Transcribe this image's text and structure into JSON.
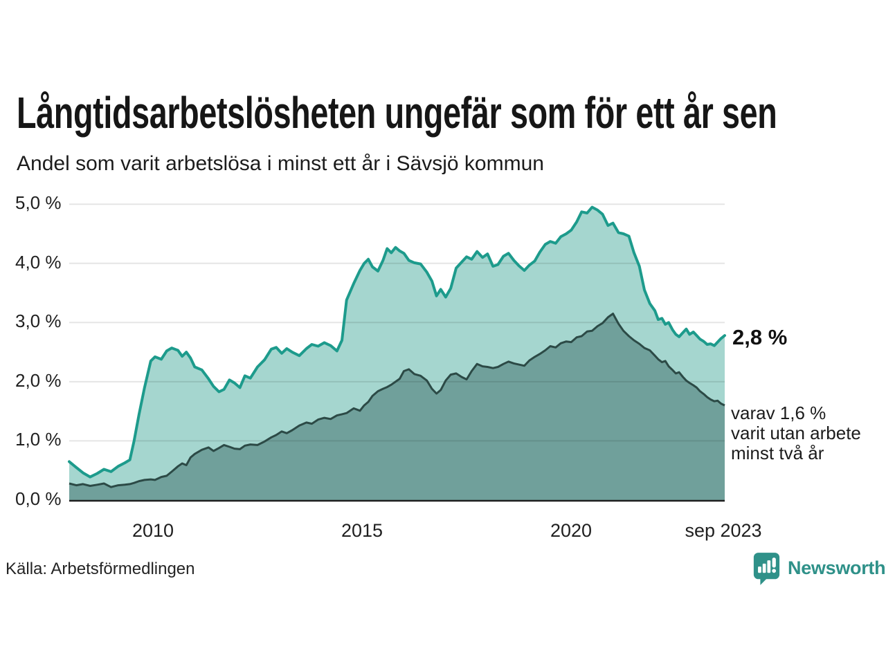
{
  "chart_data": {
    "type": "area",
    "title": "Långtidsarbetslösheten ungefär som för ett år sen",
    "subtitle": "Andel som varit arbetslösa i minst ett år i Sävsjö kommun",
    "xlabel": "",
    "ylabel": "",
    "x_range": [
      2008.0,
      2023.67
    ],
    "y_range": [
      0,
      5.3
    ],
    "grid": "horizontal",
    "series": [
      {
        "name": "arbetslösa minst ett år",
        "column": 1,
        "latest_value_pct": 2.8
      },
      {
        "name": "utan arbete minst två år",
        "column": 2,
        "latest_value_pct": 1.6
      }
    ],
    "y_ticks": [
      {
        "value": 0,
        "label": "0,0 %"
      },
      {
        "value": 1,
        "label": "1,0 %"
      },
      {
        "value": 2,
        "label": "2,0 %"
      },
      {
        "value": 3,
        "label": "3,0 %"
      },
      {
        "value": 4,
        "label": "4,0 %"
      },
      {
        "value": 5,
        "label": "5,0 %"
      }
    ],
    "x_ticks": [
      {
        "value": 2010,
        "label": "2010"
      },
      {
        "value": 2015,
        "label": "2015"
      },
      {
        "value": 2020,
        "label": "2020"
      },
      {
        "value": 2023.63,
        "label": "sep 2023"
      }
    ],
    "points": [
      [
        2008.0,
        0.65,
        0.28
      ],
      [
        2008.17,
        0.55,
        0.25
      ],
      [
        2008.33,
        0.46,
        0.27
      ],
      [
        2008.5,
        0.39,
        0.24
      ],
      [
        2008.67,
        0.45,
        0.26
      ],
      [
        2008.83,
        0.52,
        0.28
      ],
      [
        2009.0,
        0.48,
        0.22
      ],
      [
        2009.17,
        0.57,
        0.25
      ],
      [
        2009.33,
        0.63,
        0.26
      ],
      [
        2009.45,
        0.68,
        0.27
      ],
      [
        2009.55,
        1.0,
        0.29
      ],
      [
        2009.67,
        1.45,
        0.32
      ],
      [
        2009.8,
        1.9,
        0.34
      ],
      [
        2009.95,
        2.35,
        0.35
      ],
      [
        2010.05,
        2.42,
        0.34
      ],
      [
        2010.2,
        2.38,
        0.39
      ],
      [
        2010.33,
        2.52,
        0.41
      ],
      [
        2010.45,
        2.57,
        0.48
      ],
      [
        2010.6,
        2.53,
        0.57
      ],
      [
        2010.7,
        2.43,
        0.62
      ],
      [
        2010.8,
        2.5,
        0.59
      ],
      [
        2010.9,
        2.4,
        0.72
      ],
      [
        2011.0,
        2.25,
        0.78
      ],
      [
        2011.17,
        2.2,
        0.85
      ],
      [
        2011.33,
        2.05,
        0.89
      ],
      [
        2011.45,
        1.92,
        0.83
      ],
      [
        2011.58,
        1.83,
        0.88
      ],
      [
        2011.7,
        1.87,
        0.93
      ],
      [
        2011.83,
        2.03,
        0.9
      ],
      [
        2011.95,
        1.98,
        0.87
      ],
      [
        2012.08,
        1.9,
        0.86
      ],
      [
        2012.2,
        2.1,
        0.92
      ],
      [
        2012.33,
        2.06,
        0.94
      ],
      [
        2012.5,
        2.25,
        0.93
      ],
      [
        2012.67,
        2.37,
        0.99
      ],
      [
        2012.83,
        2.55,
        1.06
      ],
      [
        2012.95,
        2.58,
        1.1
      ],
      [
        2013.08,
        2.48,
        1.16
      ],
      [
        2013.2,
        2.56,
        1.13
      ],
      [
        2013.33,
        2.5,
        1.18
      ],
      [
        2013.5,
        2.44,
        1.26
      ],
      [
        2013.67,
        2.56,
        1.31
      ],
      [
        2013.8,
        2.63,
        1.29
      ],
      [
        2013.95,
        2.6,
        1.36
      ],
      [
        2014.1,
        2.66,
        1.39
      ],
      [
        2014.25,
        2.61,
        1.37
      ],
      [
        2014.4,
        2.52,
        1.43
      ],
      [
        2014.52,
        2.7,
        1.45
      ],
      [
        2014.63,
        3.38,
        1.47
      ],
      [
        2014.8,
        3.66,
        1.55
      ],
      [
        2014.95,
        3.88,
        1.51
      ],
      [
        2015.05,
        4.0,
        1.6
      ],
      [
        2015.15,
        4.07,
        1.66
      ],
      [
        2015.25,
        3.94,
        1.76
      ],
      [
        2015.38,
        3.87,
        1.84
      ],
      [
        2015.5,
        4.05,
        1.88
      ],
      [
        2015.6,
        4.25,
        1.91
      ],
      [
        2015.7,
        4.18,
        1.95
      ],
      [
        2015.8,
        4.27,
        2.0
      ],
      [
        2015.9,
        4.21,
        2.05
      ],
      [
        2016.0,
        4.17,
        2.18
      ],
      [
        2016.12,
        4.05,
        2.21
      ],
      [
        2016.25,
        4.01,
        2.13
      ],
      [
        2016.4,
        3.99,
        2.1
      ],
      [
        2016.55,
        3.85,
        2.02
      ],
      [
        2016.67,
        3.7,
        1.88
      ],
      [
        2016.78,
        3.45,
        1.8
      ],
      [
        2016.88,
        3.56,
        1.86
      ],
      [
        2017.0,
        3.43,
        2.02
      ],
      [
        2017.12,
        3.58,
        2.12
      ],
      [
        2017.25,
        3.92,
        2.14
      ],
      [
        2017.38,
        4.02,
        2.08
      ],
      [
        2017.5,
        4.11,
        2.04
      ],
      [
        2017.62,
        4.07,
        2.18
      ],
      [
        2017.75,
        4.2,
        2.3
      ],
      [
        2017.88,
        4.1,
        2.26
      ],
      [
        2018.0,
        4.16,
        2.25
      ],
      [
        2018.13,
        3.95,
        2.23
      ],
      [
        2018.25,
        3.98,
        2.25
      ],
      [
        2018.38,
        4.12,
        2.3
      ],
      [
        2018.5,
        4.17,
        2.34
      ],
      [
        2018.63,
        4.05,
        2.31
      ],
      [
        2018.75,
        3.96,
        2.29
      ],
      [
        2018.88,
        3.88,
        2.27
      ],
      [
        2019.0,
        3.97,
        2.36
      ],
      [
        2019.13,
        4.04,
        2.42
      ],
      [
        2019.25,
        4.19,
        2.47
      ],
      [
        2019.38,
        4.32,
        2.53
      ],
      [
        2019.5,
        4.37,
        2.6
      ],
      [
        2019.63,
        4.34,
        2.58
      ],
      [
        2019.75,
        4.45,
        2.65
      ],
      [
        2019.88,
        4.5,
        2.68
      ],
      [
        2020.0,
        4.56,
        2.67
      ],
      [
        2020.13,
        4.7,
        2.75
      ],
      [
        2020.25,
        4.87,
        2.77
      ],
      [
        2020.38,
        4.85,
        2.85
      ],
      [
        2020.5,
        4.95,
        2.86
      ],
      [
        2020.63,
        4.9,
        2.94
      ],
      [
        2020.75,
        4.83,
        2.99
      ],
      [
        2020.88,
        4.64,
        3.09
      ],
      [
        2021.0,
        4.68,
        3.15
      ],
      [
        2021.13,
        4.52,
        2.98
      ],
      [
        2021.25,
        4.5,
        2.86
      ],
      [
        2021.38,
        4.46,
        2.77
      ],
      [
        2021.5,
        4.18,
        2.7
      ],
      [
        2021.63,
        3.95,
        2.64
      ],
      [
        2021.75,
        3.55,
        2.57
      ],
      [
        2021.88,
        3.32,
        2.53
      ],
      [
        2022.0,
        3.2,
        2.44
      ],
      [
        2022.08,
        3.05,
        2.38
      ],
      [
        2022.17,
        3.07,
        2.33
      ],
      [
        2022.25,
        2.97,
        2.35
      ],
      [
        2022.33,
        3.0,
        2.26
      ],
      [
        2022.42,
        2.88,
        2.2
      ],
      [
        2022.5,
        2.8,
        2.14
      ],
      [
        2022.58,
        2.76,
        2.16
      ],
      [
        2022.67,
        2.83,
        2.08
      ],
      [
        2022.75,
        2.89,
        2.02
      ],
      [
        2022.83,
        2.8,
        1.98
      ],
      [
        2022.92,
        2.84,
        1.94
      ],
      [
        2023.0,
        2.78,
        1.9
      ],
      [
        2023.08,
        2.72,
        1.84
      ],
      [
        2023.17,
        2.68,
        1.79
      ],
      [
        2023.25,
        2.63,
        1.74
      ],
      [
        2023.33,
        2.64,
        1.7
      ],
      [
        2023.42,
        2.61,
        1.67
      ],
      [
        2023.5,
        2.67,
        1.68
      ],
      [
        2023.58,
        2.73,
        1.63
      ],
      [
        2023.67,
        2.78,
        1.6
      ]
    ]
  },
  "annotations": {
    "latest_total": "2,8 %",
    "latest_two_plus_lines": [
      "varav 1,6 %",
      "varit utan arbete",
      "minst två år"
    ]
  },
  "footer": {
    "source": "Källa: Arbetsförmedlingen",
    "brand": "Newsworthy"
  },
  "colors": {
    "teal_line": "#1d9b8c",
    "light_fill": "#a5d6cf",
    "dark_fill": "#70a09b",
    "dark_line": "#2c4a46",
    "grid": "rgba(0,0,0,0.10)",
    "axis": "#1f1f1f",
    "brand_teal": "#2f9189"
  }
}
